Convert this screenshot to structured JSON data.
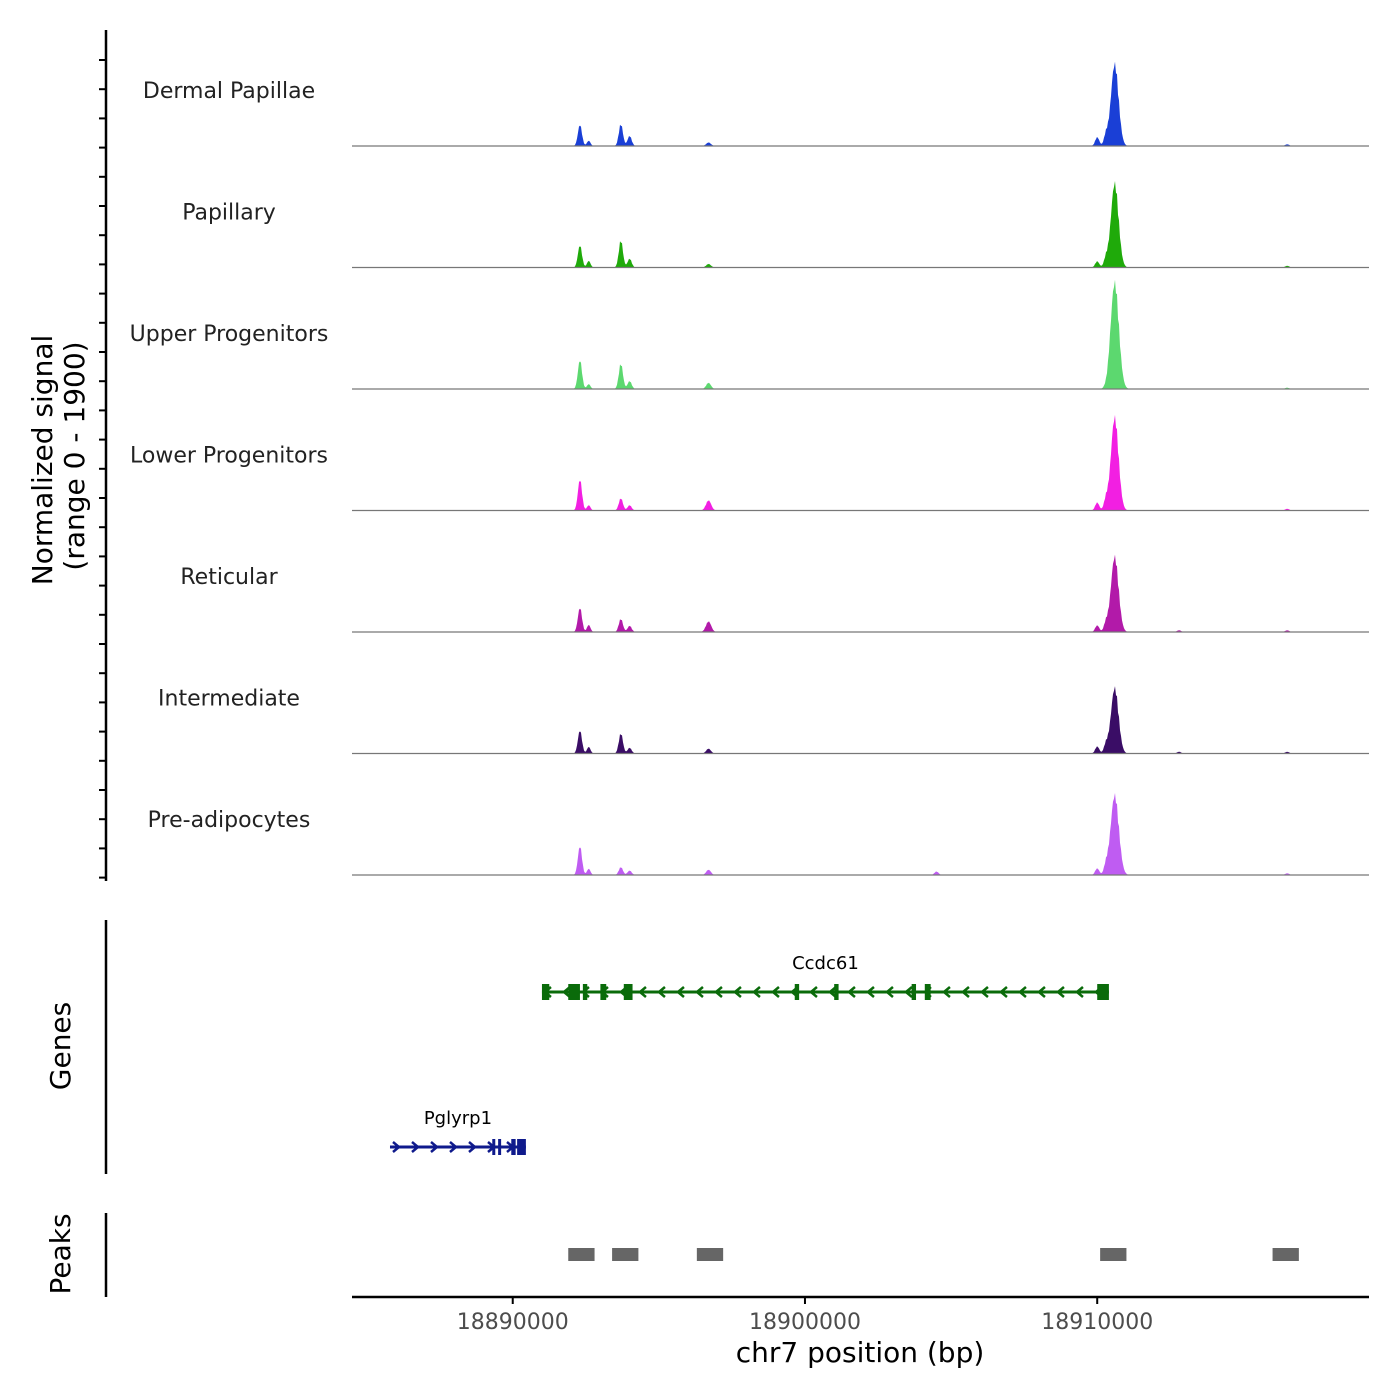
{
  "chart_data": {
    "type": "area",
    "title": "",
    "ylabel_line1": "Normalized signal",
    "ylabel_line2": "(range 0 - 1900)",
    "ylim": [
      0,
      1900
    ],
    "xlabel": "chr7 position (bp)",
    "xlim": [
      18884500,
      18919300
    ],
    "xticks": [
      18890000,
      18900000,
      18910000
    ],
    "xtick_labels": [
      "18890000",
      "18900000",
      "18910000"
    ],
    "tracks": [
      {
        "name": "Dermal Papillae",
        "color": "#1a3fd6",
        "peaks": [
          [
            18892300,
            480,
            70
          ],
          [
            18892600,
            120,
            60
          ],
          [
            18893700,
            500,
            70
          ],
          [
            18894000,
            230,
            70
          ],
          [
            18896700,
            80,
            80
          ],
          [
            18910000,
            200,
            70
          ],
          [
            18910300,
            240,
            70
          ],
          [
            18910600,
            1850,
            130
          ],
          [
            18916500,
            40,
            70
          ]
        ]
      },
      {
        "name": "Papillary",
        "color": "#1faa0a",
        "peaks": [
          [
            18892300,
            500,
            70
          ],
          [
            18892600,
            150,
            60
          ],
          [
            18893700,
            620,
            70
          ],
          [
            18894000,
            200,
            70
          ],
          [
            18896700,
            80,
            80
          ],
          [
            18910000,
            140,
            70
          ],
          [
            18910300,
            200,
            70
          ],
          [
            18910600,
            1900,
            130
          ],
          [
            18916500,
            40,
            70
          ]
        ]
      },
      {
        "name": "Upper Progenitors",
        "color": "#5cd86f",
        "peaks": [
          [
            18892300,
            650,
            70
          ],
          [
            18892600,
            110,
            60
          ],
          [
            18893700,
            580,
            70
          ],
          [
            18894000,
            180,
            70
          ],
          [
            18896700,
            140,
            80
          ],
          [
            18910600,
            2400,
            140
          ],
          [
            18916500,
            30,
            70
          ]
        ]
      },
      {
        "name": "Lower Progenitors",
        "color": "#f21fe2",
        "peaks": [
          [
            18892300,
            700,
            70
          ],
          [
            18892600,
            120,
            60
          ],
          [
            18893700,
            280,
            70
          ],
          [
            18894000,
            120,
            70
          ],
          [
            18896700,
            230,
            90
          ],
          [
            18910000,
            180,
            70
          ],
          [
            18910300,
            240,
            70
          ],
          [
            18910600,
            2100,
            130
          ],
          [
            18916500,
            40,
            70
          ]
        ]
      },
      {
        "name": "Reticular",
        "color": "#b21aa9",
        "peaks": [
          [
            18892300,
            550,
            70
          ],
          [
            18892600,
            160,
            60
          ],
          [
            18893700,
            300,
            70
          ],
          [
            18894000,
            140,
            70
          ],
          [
            18896700,
            240,
            90
          ],
          [
            18910000,
            150,
            70
          ],
          [
            18910300,
            200,
            70
          ],
          [
            18910600,
            1700,
            130
          ],
          [
            18912800,
            40,
            70
          ],
          [
            18916500,
            40,
            70
          ]
        ]
      },
      {
        "name": "Intermediate",
        "color": "#3a0d66",
        "peaks": [
          [
            18892300,
            520,
            70
          ],
          [
            18892600,
            150,
            60
          ],
          [
            18893700,
            460,
            70
          ],
          [
            18894000,
            130,
            70
          ],
          [
            18896700,
            110,
            80
          ],
          [
            18910000,
            160,
            70
          ],
          [
            18910300,
            200,
            70
          ],
          [
            18910600,
            1480,
            130
          ],
          [
            18912800,
            40,
            70
          ],
          [
            18916500,
            40,
            70
          ]
        ]
      },
      {
        "name": "Pre-adipocytes",
        "color": "#bf5cf2",
        "peaks": [
          [
            18892300,
            650,
            70
          ],
          [
            18892600,
            140,
            60
          ],
          [
            18893700,
            180,
            70
          ],
          [
            18894000,
            100,
            70
          ],
          [
            18896700,
            120,
            80
          ],
          [
            18904500,
            80,
            70
          ],
          [
            18910000,
            150,
            70
          ],
          [
            18910300,
            200,
            70
          ],
          [
            18910600,
            1800,
            140
          ],
          [
            18916500,
            40,
            70
          ]
        ]
      }
    ],
    "genes_label": "Genes",
    "genes": [
      {
        "name": "Ccdc61",
        "strand": "-",
        "start": 18891000,
        "end": 18910400,
        "color": "#0a6b0a",
        "exons": [
          [
            18891000,
            18891250
          ],
          [
            18891900,
            18892300
          ],
          [
            18892400,
            18892550
          ],
          [
            18893000,
            18893200
          ],
          [
            18893800,
            18894100
          ],
          [
            18899650,
            18899800
          ],
          [
            18901000,
            18901150
          ],
          [
            18903650,
            18903800
          ],
          [
            18904100,
            18904300
          ],
          [
            18910000,
            18910400
          ]
        ]
      },
      {
        "name": "Pglyrp1",
        "strand": "+",
        "start": 18885800,
        "end": 18890450,
        "color": "#0f1a8c",
        "exons": [
          [
            18889300,
            18889400
          ],
          [
            18889500,
            18889600
          ],
          [
            18889950,
            18890100
          ],
          [
            18890150,
            18890450
          ]
        ]
      }
    ],
    "peaks_label": "Peaks",
    "peak_regions": [
      [
        18891900,
        18892800
      ],
      [
        18893400,
        18894300
      ],
      [
        18896300,
        18897200
      ],
      [
        18910100,
        18911000
      ],
      [
        18916000,
        18916900
      ]
    ],
    "peak_color": "#666666"
  }
}
